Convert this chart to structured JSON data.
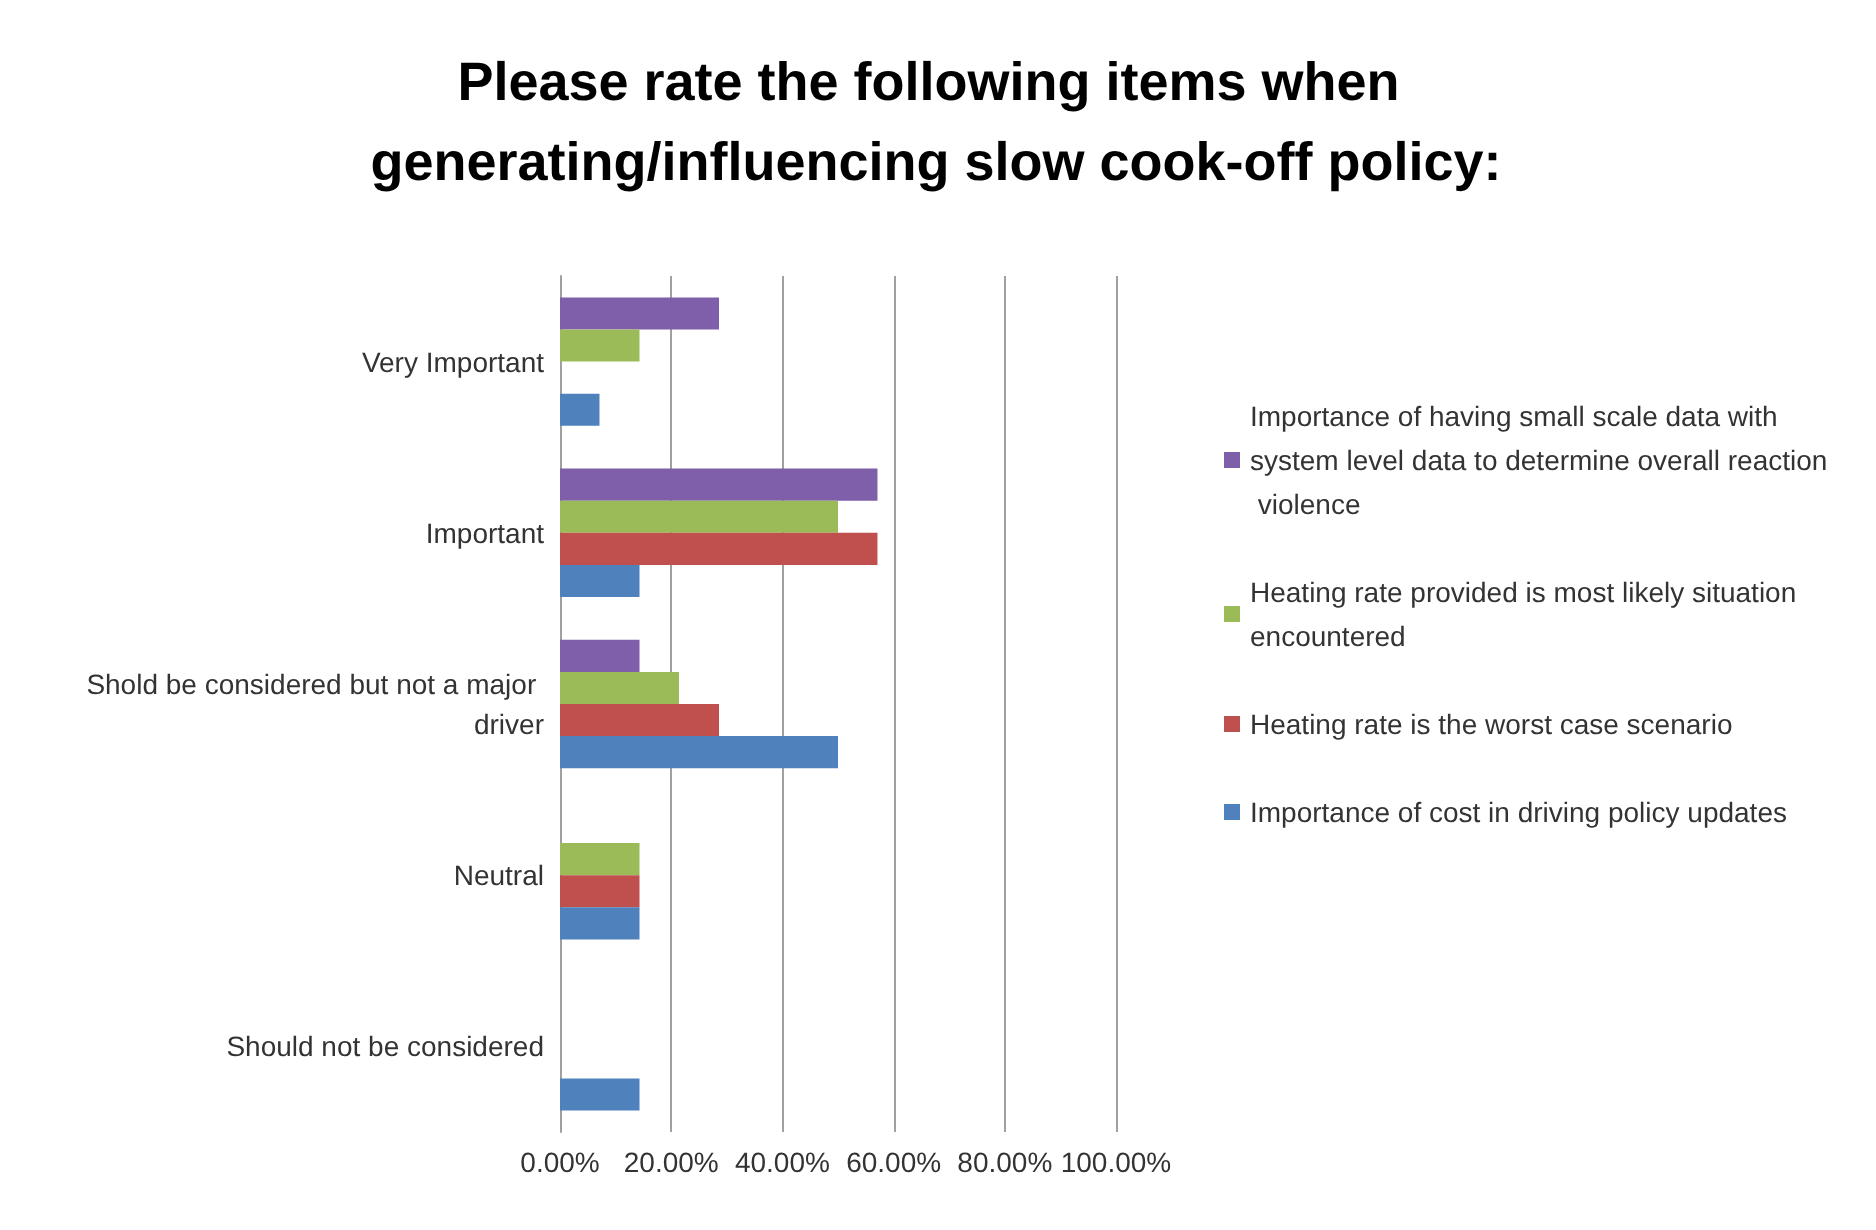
{
  "chart_data": {
    "type": "bar",
    "orientation": "horizontal",
    "title": "Please rate the following items when generating/influencing slow cook-off policy:",
    "categories": [
      "Very Important",
      "Important",
      "Shold be considered but not a major driver",
      "Neutral",
      "Should not be considered"
    ],
    "series": [
      {
        "name": "Importance of having small scale data with system level data to determine overall reaction violence",
        "color": "#7f5fa9",
        "values": [
          28.6,
          57.1,
          14.3,
          0,
          0
        ]
      },
      {
        "name": "Heating rate provided is most likely situation encountered",
        "color": "#9bbb59",
        "values": [
          14.3,
          50,
          21.4,
          14.3,
          0
        ]
      },
      {
        "name": "Heating rate is the worst case scenario",
        "color": "#c0504d",
        "values": [
          0,
          57.1,
          28.6,
          14.3,
          0
        ]
      },
      {
        "name": "Importance of cost in driving policy updates",
        "color": "#4f81bd",
        "values": [
          7.1,
          14.3,
          50,
          14.3,
          14.3
        ]
      }
    ],
    "xlim": [
      0,
      100
    ],
    "xticks": [
      {
        "value": 0,
        "label": "0.00%"
      },
      {
        "value": 20,
        "label": "20.00%"
      },
      {
        "value": 40,
        "label": "40.00%"
      },
      {
        "value": 60,
        "label": "60.00%"
      },
      {
        "value": 80,
        "label": "80.00%"
      },
      {
        "value": 100,
        "label": "100.00%"
      }
    ],
    "grid": "x",
    "legend": "right"
  }
}
